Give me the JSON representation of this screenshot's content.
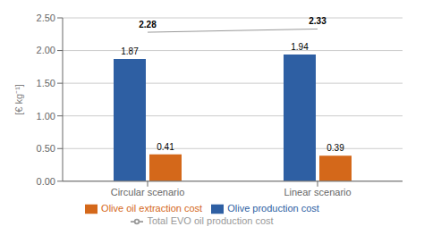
{
  "chart_data": {
    "type": "bar",
    "categories": [
      "Circular scenario",
      "Linear scenario"
    ],
    "ylabel": "[€ kg⁻¹]",
    "ylim": [
      0.0,
      2.5
    ],
    "yticks": [
      {
        "value": 0.0,
        "label": "0.00"
      },
      {
        "value": 0.5,
        "label": "0.50"
      },
      {
        "value": 1.0,
        "label": "1.00"
      },
      {
        "value": 1.5,
        "label": "1.50"
      },
      {
        "value": 2.0,
        "label": "2.00"
      },
      {
        "value": 2.5,
        "label": "2.50"
      }
    ],
    "grid": true,
    "legend": "bottom",
    "data_labels": true,
    "series": [
      {
        "name": "Olive production cost",
        "color": "#2E5FA3",
        "values": [
          1.87,
          1.94
        ]
      },
      {
        "name": "Olive oil extraction cost",
        "color": "#D4681A",
        "values": [
          0.41,
          0.39
        ]
      },
      {
        "name": "Total EVO oil production cost",
        "type": "line",
        "color": "#999999",
        "values": [
          2.28,
          2.33
        ]
      }
    ]
  }
}
